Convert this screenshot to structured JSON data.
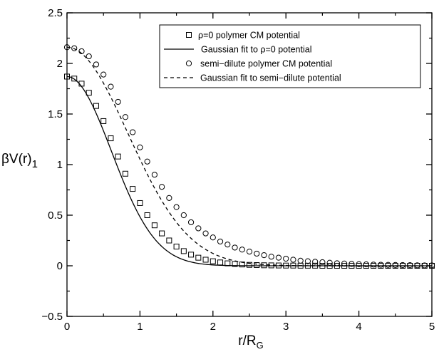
{
  "chart_data": {
    "type": "scatter",
    "xlabel": "r/R",
    "xlabel_sub": "G",
    "ylabel": "βV(r)",
    "ylabel_sub": "1",
    "xlim": [
      0,
      5
    ],
    "ylim": [
      -0.5,
      2.5
    ],
    "x_ticks": [
      0,
      1,
      2,
      3,
      4,
      5
    ],
    "x_tick_labels": [
      "0",
      "1",
      "2",
      "3",
      "4",
      "5"
    ],
    "y_ticks": [
      -0.5,
      0,
      0.5,
      1,
      1.5,
      2,
      2.5
    ],
    "y_tick_labels": [
      "−0.5",
      "0",
      "0.5",
      "1",
      "1.5",
      "2",
      "2.5"
    ],
    "grid": false,
    "legend_position": "top-right",
    "series": [
      {
        "name": "ρ=0 polymer CM potential",
        "style": "square-markers",
        "x": [
          0.0,
          0.1,
          0.2,
          0.3,
          0.4,
          0.5,
          0.6,
          0.7,
          0.8,
          0.9,
          1.0,
          1.1,
          1.2,
          1.3,
          1.4,
          1.5,
          1.6,
          1.7,
          1.8,
          1.9,
          2.0,
          2.1,
          2.2,
          2.3,
          2.4,
          2.5,
          2.6,
          2.7,
          2.8,
          2.9,
          3.0,
          3.1,
          3.2,
          3.3,
          3.4,
          3.5,
          3.6,
          3.7,
          3.8,
          3.9,
          4.0,
          4.1,
          4.2,
          4.3,
          4.4,
          4.5,
          4.6,
          4.7,
          4.8,
          4.9,
          5.0
        ],
        "y": [
          1.87,
          1.85,
          1.8,
          1.71,
          1.58,
          1.43,
          1.26,
          1.08,
          0.91,
          0.76,
          0.62,
          0.5,
          0.4,
          0.32,
          0.25,
          0.19,
          0.145,
          0.11,
          0.08,
          0.06,
          0.045,
          0.033,
          0.024,
          0.018,
          0.013,
          0.009,
          0.007,
          0.005,
          0.004,
          0.003,
          0.002,
          0.002,
          0.001,
          0.001,
          0.001,
          0.0,
          0.0,
          0.0,
          0.0,
          0.0,
          0.0,
          0.0,
          0.0,
          0.0,
          0.0,
          0.0,
          0.0,
          0.0,
          0.0,
          0.0,
          0.0
        ]
      },
      {
        "name": "Gaussian fit to ρ=0 potential",
        "style": "solid-line",
        "amplitude": 1.87,
        "width": 0.86
      },
      {
        "name": "semi−dilute polymer CM potential",
        "style": "circle-markers",
        "x": [
          0.0,
          0.1,
          0.2,
          0.3,
          0.4,
          0.5,
          0.6,
          0.7,
          0.8,
          0.9,
          1.0,
          1.1,
          1.2,
          1.3,
          1.4,
          1.5,
          1.6,
          1.7,
          1.8,
          1.9,
          2.0,
          2.1,
          2.2,
          2.3,
          2.4,
          2.5,
          2.6,
          2.7,
          2.8,
          2.9,
          3.0,
          3.1,
          3.2,
          3.3,
          3.4,
          3.5,
          3.6,
          3.7,
          3.8,
          3.9,
          4.0,
          4.1,
          4.2,
          4.3,
          4.4,
          4.5,
          4.6,
          4.7,
          4.8,
          4.9,
          5.0
        ],
        "y": [
          2.16,
          2.15,
          2.12,
          2.07,
          1.99,
          1.89,
          1.77,
          1.62,
          1.47,
          1.32,
          1.17,
          1.03,
          0.9,
          0.78,
          0.67,
          0.58,
          0.5,
          0.43,
          0.37,
          0.32,
          0.28,
          0.24,
          0.21,
          0.18,
          0.16,
          0.14,
          0.12,
          0.105,
          0.09,
          0.08,
          0.07,
          0.06,
          0.05,
          0.045,
          0.04,
          0.035,
          0.03,
          0.025,
          0.022,
          0.019,
          0.016,
          0.014,
          0.012,
          0.01,
          0.009,
          0.008,
          0.007,
          0.006,
          0.005,
          0.004,
          0.004
        ]
      },
      {
        "name": "Gaussian fit to semi−dilute potential",
        "style": "dashed-line",
        "amplitude": 2.16,
        "width": 1.18
      }
    ]
  }
}
